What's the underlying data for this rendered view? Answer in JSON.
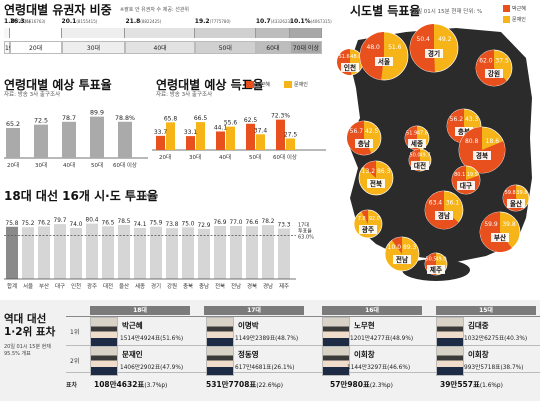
{
  "colors": {
    "park": "#e8501d",
    "moon": "#f7b418",
    "gray": "#9a9a9a",
    "dark": "#666666",
    "bar": "#d6d6d6",
    "headerdark": "#7b7b7b"
  },
  "voters": {
    "title": "연령대별 유권자 비중",
    "source": "※괄호 안 유권자 수 제공: 선관위",
    "segments": [
      {
        "pct": "1.8",
        "count": "(72921)",
        "label": "19세",
        "share": 1.8,
        "shade": "#f7f7f7"
      },
      {
        "pct": "16.3",
        "count": "(6616763)",
        "label": "20대",
        "share": 16.3,
        "shade": "#ffffff"
      },
      {
        "pct": "20.1",
        "count": "(8155415)",
        "label": "30대",
        "share": 20.1,
        "shade": "#eeeeee"
      },
      {
        "pct": "21.8",
        "count": "(8822425)",
        "label": "40대",
        "share": 21.8,
        "shade": "#e2e2e2"
      },
      {
        "pct": "19.2",
        "count": "(7775780)",
        "label": "50대",
        "share": 19.2,
        "shade": "#d0d0d0"
      },
      {
        "pct": "10.7",
        "count": "(4332623)",
        "label": "60대",
        "share": 10.7,
        "shade": "#bdbdbd"
      },
      {
        "pct": "10.1%",
        "count": "(4067315)",
        "label": "70대 이상",
        "share": 10.1,
        "shade": "#a8a8a8"
      }
    ]
  },
  "turnout_age": {
    "title": "연령대별 예상 투표율",
    "source": "자료: 방송 3사 출구조사",
    "categories": [
      "20대",
      "30대",
      "40대",
      "50대",
      "60대 이상"
    ],
    "values": [
      "65.2",
      "72.5",
      "78.7",
      "89.9",
      "78.8%"
    ]
  },
  "vote_age": {
    "title": "연령대별 예상 득표율",
    "source": "자료: 방송 3사 출구조사",
    "legend": [
      "박근혜",
      "문재인"
    ],
    "categories": [
      "20대",
      "30대",
      "40대",
      "50대",
      "60대 이상"
    ],
    "park": [
      "33.7",
      "33.1",
      "44.1",
      "62.5",
      "72.3%"
    ],
    "moon": [
      "65.8",
      "66.5",
      "55.6",
      "37.4",
      "27.5"
    ]
  },
  "turnout_region": {
    "title": "18대 대선 16개 시·도 투표율",
    "unit": "단위: %",
    "categories": [
      "합계",
      "서울",
      "부산",
      "대구",
      "인천",
      "광주",
      "대전",
      "울산",
      "세종",
      "경기",
      "강원",
      "충북",
      "충남",
      "전북",
      "전남",
      "경북",
      "경남",
      "제주"
    ],
    "values": [
      "75.8",
      "75.2",
      "76.2",
      "79.7",
      "74.0",
      "80.4",
      "76.5",
      "78.5",
      "74.1",
      "75.9",
      "73.8",
      "75.0",
      "72.9",
      "76.9",
      "77.0",
      "76.6",
      "78.2",
      "73.3"
    ],
    "ref": [
      "17대",
      "투표율",
      "63.0%"
    ]
  },
  "map": {
    "title": "시도별 득표율",
    "note": "20일 01시 15분 현재 단위: %",
    "legend": [
      "박근혜",
      "문재인"
    ],
    "regions": [
      {
        "name": "인천",
        "park": "51.6",
        "moon": "48.0"
      },
      {
        "name": "서울",
        "park": "48.0",
        "moon": "51.6"
      },
      {
        "name": "경기",
        "park": "50.4",
        "moon": "49.2"
      },
      {
        "name": "강원",
        "park": "62.0",
        "moon": "37.5"
      },
      {
        "name": "충북",
        "park": "56.2",
        "moon": "43.3"
      },
      {
        "name": "세종",
        "park": "51.9",
        "moon": "47.6"
      },
      {
        "name": "충남",
        "park": "56.7",
        "moon": "42.5"
      },
      {
        "name": "대전",
        "park": "50.0",
        "moon": "49.7"
      },
      {
        "name": "경북",
        "park": "80.8",
        "moon": "18.6"
      },
      {
        "name": "전북",
        "park": "13.2",
        "moon": "86.3"
      },
      {
        "name": "대구",
        "park": "80.1",
        "moon": "19.5"
      },
      {
        "name": "울산",
        "park": "59.8",
        "moon": "39.8"
      },
      {
        "name": "광주",
        "park": "7.8",
        "moon": "92.0"
      },
      {
        "name": "경남",
        "park": "63.4",
        "moon": "36.1"
      },
      {
        "name": "부산",
        "park": "59.9",
        "moon": "39.8"
      },
      {
        "name": "전남",
        "park": "10.0",
        "moon": "89.3"
      },
      {
        "name": "제주",
        "park": "50.5",
        "moon": "49.0"
      }
    ]
  },
  "history": {
    "title": "역대 대선 1·2위 표차",
    "note": "20일 01시 15분 현재 95.5% 개표",
    "row_labels": [
      "1위",
      "2위",
      "표차"
    ],
    "elections": [
      {
        "header": "18대",
        "first_name": "박근혜",
        "first_votes": "1514만4924표(51.6%)",
        "second_name": "문재인",
        "second_votes": "1406만2902표(47.9%)",
        "gap": "108만4632표",
        "gap_pct": "(3.7%p)"
      },
      {
        "header": "17대",
        "first_name": "이명박",
        "first_votes": "1149만2389표(48.7%)",
        "second_name": "정동영",
        "second_votes": "617만4681표(26.1%)",
        "gap": "531만7708표",
        "gap_pct": "(22.6%p)"
      },
      {
        "header": "16대",
        "first_name": "노무현",
        "first_votes": "1201만4277표(48.9%)",
        "second_name": "이회창",
        "second_votes": "1144만3297표(46.6%)",
        "gap": "57만980표",
        "gap_pct": "(2.3%p)"
      },
      {
        "header": "15대",
        "first_name": "김대중",
        "first_votes": "1032만6275표(40.3%)",
        "second_name": "이회창",
        "second_votes": "993만5718표(38.7%)",
        "gap": "39만557표",
        "gap_pct": "(1.6%p)"
      }
    ]
  }
}
